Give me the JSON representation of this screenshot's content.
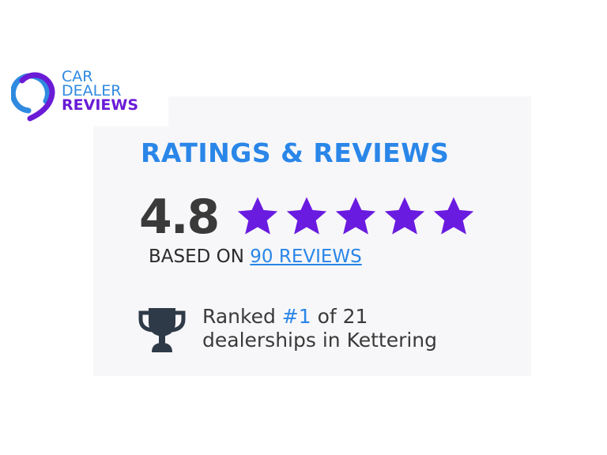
{
  "logo": {
    "line1": "CAR",
    "line2": "DEALER",
    "line3": "REVIEWS"
  },
  "card": {
    "title": "RATINGS & REVIEWS",
    "score": "4.8",
    "stars": 5,
    "based_on": "BASED ON",
    "reviews_link": "90 REVIEWS",
    "rank_prefix": "Ranked",
    "rank_number": "#1",
    "rank_suffix": "of 21",
    "rank_line2": "dealerships in Kettering",
    "icon": "trophy-icon"
  },
  "colors": {
    "accent_blue": "#2a86e8",
    "star_purple": "#6a1be0",
    "card_bg": "#f7f7f9"
  }
}
